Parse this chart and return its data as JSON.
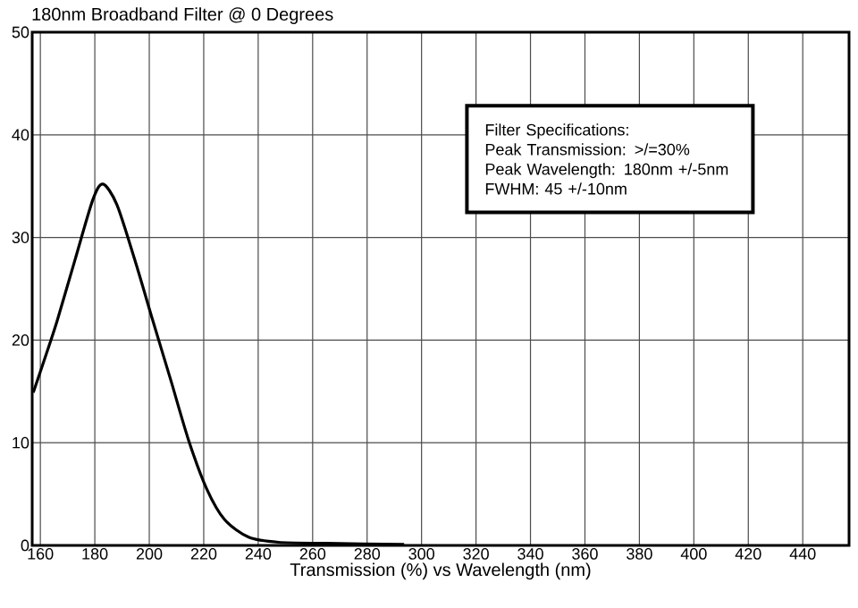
{
  "chart_data": {
    "type": "line",
    "title": "180nm Broadband Filter @ 0 Degrees",
    "xlabel": "Transmission (%) vs Wavelength (nm)",
    "x": [
      157.4,
      162,
      166.2,
      172.7,
      179.3,
      183,
      188.1,
      194.7,
      201.3,
      207.9,
      214.5,
      221.1,
      227.7,
      236.5,
      247.5,
      265,
      293.6
    ],
    "values": [
      14.9,
      18.5,
      21.9,
      27.8,
      33.7,
      35.2,
      33.2,
      27.8,
      21.9,
      16.1,
      10.2,
      5.5,
      2.5,
      0.8,
      0.3,
      0.2,
      0.1
    ],
    "color": "#000000",
    "xlim": [
      157,
      457
    ],
    "ylim": [
      0,
      50
    ],
    "xticks": [
      160,
      180,
      200,
      220,
      240,
      260,
      280,
      300,
      320,
      340,
      360,
      380,
      400,
      420,
      440
    ],
    "yticks": [
      0,
      10,
      20,
      30,
      40,
      50
    ],
    "grid": true,
    "annotations": [
      "Filter Specifications:",
      "Peak Transmission: >/=30%",
      "Peak Wavelength: 180nm +/-5nm",
      "FWHM: 45 +/-10nm"
    ]
  }
}
